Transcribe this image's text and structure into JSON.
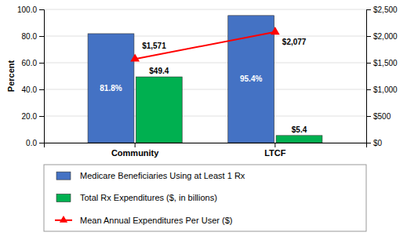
{
  "chart_data": {
    "type": "bar",
    "categories": [
      "Community",
      "LTCF"
    ],
    "ylabel": "Percent",
    "ylim": [
      0,
      100
    ],
    "yticks": [
      {
        "value": 0,
        "label": "0.0"
      },
      {
        "value": 20,
        "label": "20.0"
      },
      {
        "value": 40,
        "label": "40.0"
      },
      {
        "value": 60,
        "label": "60.0"
      },
      {
        "value": 80,
        "label": "80.0"
      },
      {
        "value": 100,
        "label": "100.0"
      }
    ],
    "y2lim": [
      0,
      2500
    ],
    "y2ticks": [
      {
        "value": 0,
        "label": "$0"
      },
      {
        "value": 500,
        "label": "$500"
      },
      {
        "value": 1000,
        "label": "$1,000"
      },
      {
        "value": 1500,
        "label": "$1,500"
      },
      {
        "value": 2000,
        "label": "$2,000"
      },
      {
        "value": 2500,
        "label": "$2,500"
      }
    ],
    "grid": true,
    "legend": "bottom",
    "data_labels": true,
    "series": [
      {
        "name": "Medicare Beneficiaries Using at Least 1 Rx",
        "color": "#4472C4",
        "values": [
          81.8,
          95.4
        ],
        "value_labels": [
          "81.8%",
          "95.4%"
        ]
      },
      {
        "name": "Total Rx Expenditures ($, in billions)",
        "color": "#00B050",
        "values": [
          49.4,
          5.4
        ],
        "value_labels": [
          "$49.4",
          "$5.4"
        ]
      },
      {
        "name": "Mean Annual Expenditures Per User ($)",
        "type": "line",
        "axis": "y2",
        "color": "#FF0000",
        "marker": "triangle",
        "values": [
          1571,
          2077
        ],
        "value_labels": [
          "$1,571",
          "$2,077"
        ]
      }
    ]
  }
}
